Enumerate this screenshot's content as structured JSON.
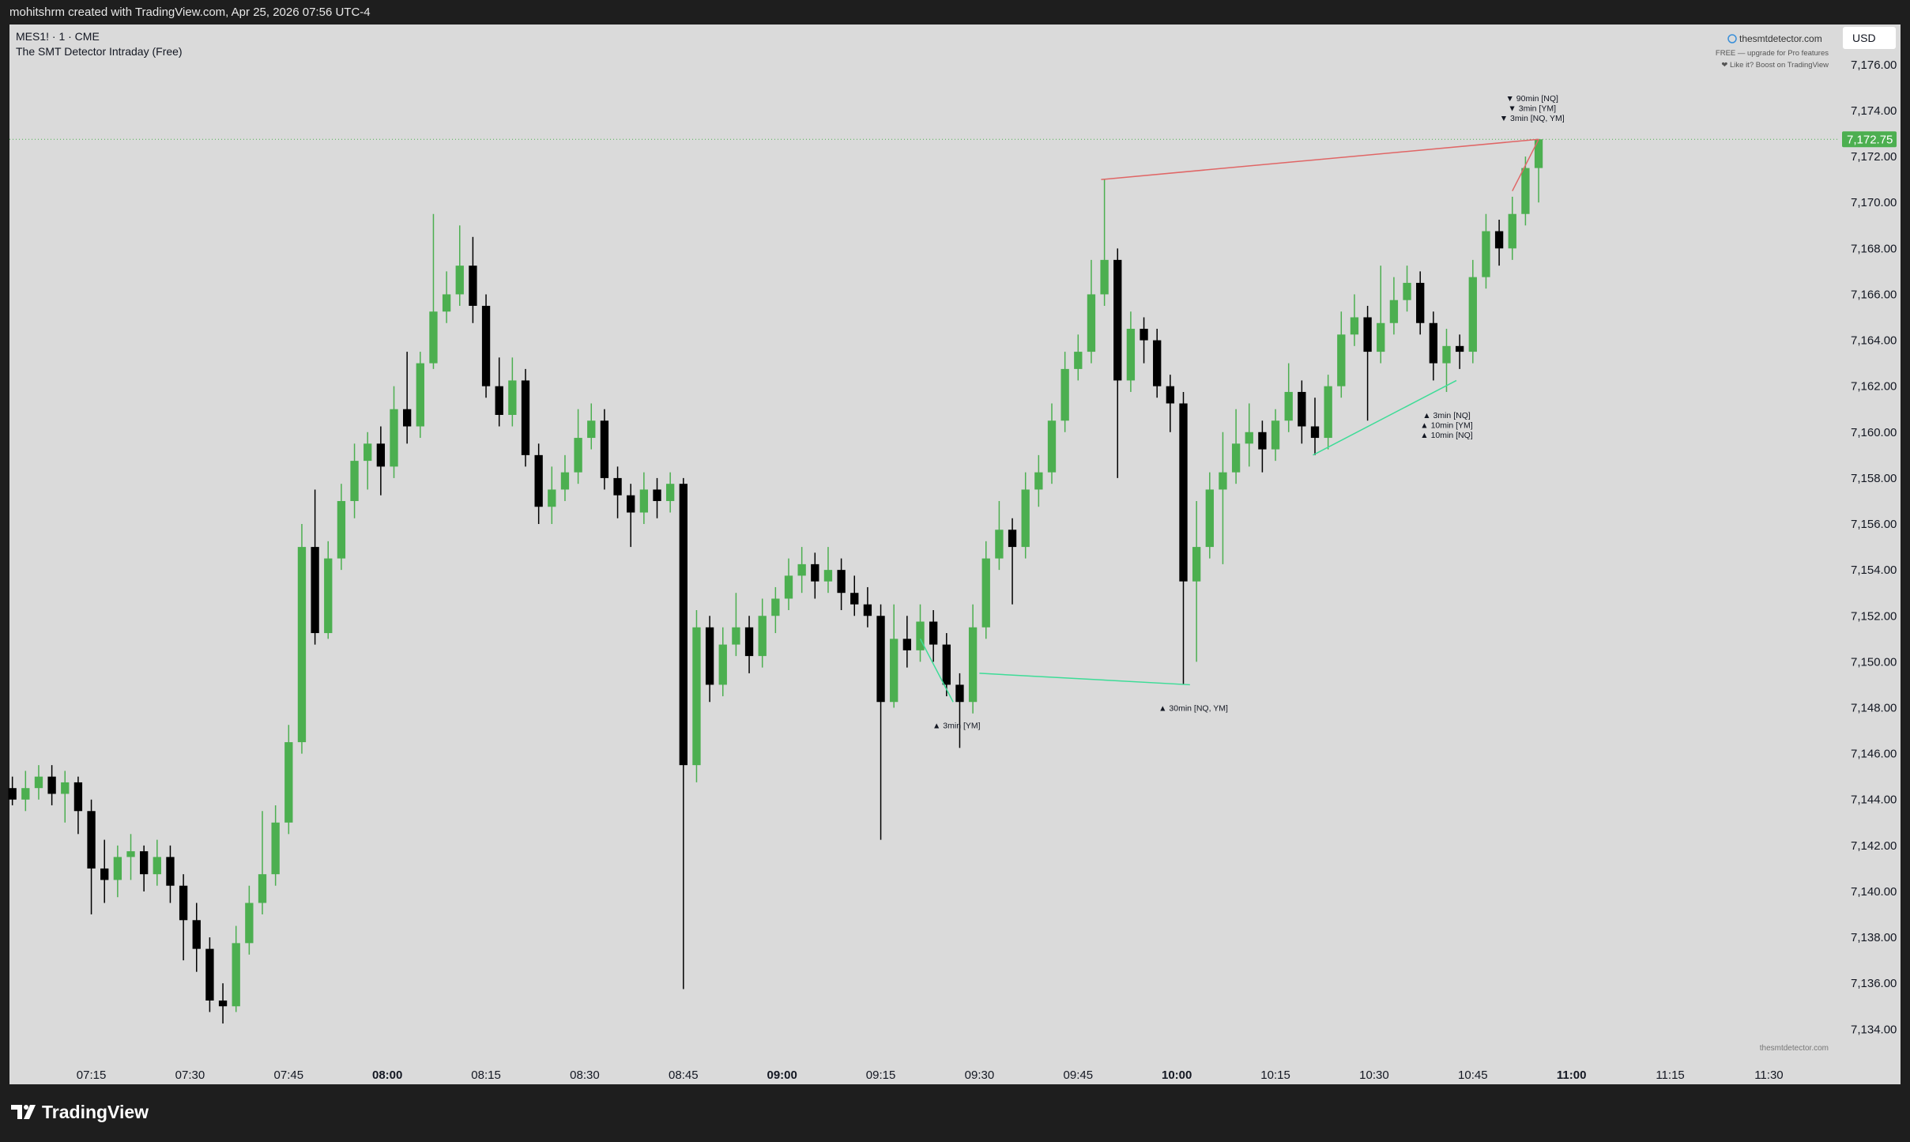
{
  "header": {
    "attribution": "mohitshrm created with TradingView.com, Apr 25, 2026 07:56 UTC-4",
    "brand": "TradingView"
  },
  "watermark": {
    "site": "thesmtdetector.com",
    "note": "FREE — upgrade for Pro features",
    "boost": "❤ Like it? Boost on TradingView",
    "footer_site": "thesmtdetector.com"
  },
  "chart_data": {
    "type": "candlestick",
    "title": "MES1! · 1 · CME",
    "subtitle": "The SMT Detector Intraday (Free)",
    "currency": "USD",
    "up_color": "#4caf50",
    "down_color": "#000000",
    "xlim": [
      422.56,
      700.76
    ],
    "ylim": [
      7132.6,
      7177.75
    ],
    "xticks": [
      {
        "value": 435,
        "label": "07:15"
      },
      {
        "value": 450,
        "label": "07:30"
      },
      {
        "value": 465,
        "label": "07:45"
      },
      {
        "value": 480,
        "label": "08:00",
        "bold": true
      },
      {
        "value": 495,
        "label": "08:15"
      },
      {
        "value": 510,
        "label": "08:30"
      },
      {
        "value": 525,
        "label": "08:45"
      },
      {
        "value": 540,
        "label": "09:00",
        "bold": true
      },
      {
        "value": 555,
        "label": "09:15"
      },
      {
        "value": 570,
        "label": "09:30"
      },
      {
        "value": 585,
        "label": "09:45"
      },
      {
        "value": 600,
        "label": "10:00",
        "bold": true
      },
      {
        "value": 615,
        "label": "10:15"
      },
      {
        "value": 630,
        "label": "10:30"
      },
      {
        "value": 645,
        "label": "10:45"
      },
      {
        "value": 660,
        "label": "11:00",
        "bold": true
      },
      {
        "value": 675,
        "label": "11:15"
      },
      {
        "value": 690,
        "label": "11:30"
      }
    ],
    "yticks": [
      {
        "value": 7134,
        "label": "7,134.00"
      },
      {
        "value": 7136,
        "label": "7,136.00"
      },
      {
        "value": 7138,
        "label": "7,138.00"
      },
      {
        "value": 7140,
        "label": "7,140.00"
      },
      {
        "value": 7142,
        "label": "7,142.00"
      },
      {
        "value": 7144,
        "label": "7,144.00"
      },
      {
        "value": 7146,
        "label": "7,146.00"
      },
      {
        "value": 7148,
        "label": "7,148.00"
      },
      {
        "value": 7150,
        "label": "7,150.00"
      },
      {
        "value": 7152,
        "label": "7,152.00"
      },
      {
        "value": 7154,
        "label": "7,154.00"
      },
      {
        "value": 7156,
        "label": "7,156.00"
      },
      {
        "value": 7158,
        "label": "7,158.00"
      },
      {
        "value": 7160,
        "label": "7,160.00"
      },
      {
        "value": 7162,
        "label": "7,162.00"
      },
      {
        "value": 7164,
        "label": "7,164.00"
      },
      {
        "value": 7166,
        "label": "7,166.00"
      },
      {
        "value": 7168,
        "label": "7,168.00"
      },
      {
        "value": 7170,
        "label": "7,170.00"
      },
      {
        "value": 7172,
        "label": "7,172.00"
      },
      {
        "value": 7174,
        "label": "7,174.00"
      },
      {
        "value": 7176,
        "label": "7,176.00"
      }
    ],
    "last_price": {
      "value": 7172.75,
      "label": "7,172.75"
    },
    "last_price_color": "#4caf50",
    "x": [
      423,
      425,
      427,
      429,
      431,
      433,
      435,
      437,
      439,
      441,
      443,
      445,
      447,
      449,
      451,
      453,
      455,
      457,
      459,
      461,
      463,
      465,
      467,
      469,
      471,
      473,
      475,
      477,
      479,
      481,
      483,
      485,
      487,
      489,
      491,
      493,
      495,
      497,
      499,
      501,
      503,
      505,
      507,
      509,
      511,
      513,
      515,
      517,
      519,
      521,
      523,
      525,
      527,
      529,
      531,
      533,
      535,
      537,
      539,
      541,
      543,
      545,
      547,
      549,
      551,
      553,
      555,
      557,
      559,
      561,
      563,
      565,
      567,
      569,
      571,
      573,
      575,
      577,
      579,
      581,
      583,
      585,
      587,
      589,
      591,
      593,
      595,
      597,
      599,
      601,
      603,
      605,
      607,
      609,
      611,
      613,
      615,
      617,
      619,
      621,
      623,
      625,
      627,
      629,
      631,
      633,
      635,
      637,
      639,
      641,
      643,
      645,
      647,
      649,
      651,
      653,
      655
    ],
    "ohlc": [
      [
        7144.5,
        7145,
        7143.75,
        7144
      ],
      [
        7144,
        7145.25,
        7143.5,
        7144.5
      ],
      [
        7144.5,
        7145.5,
        7144,
        7145
      ],
      [
        7145,
        7145.5,
        7143.75,
        7144.25
      ],
      [
        7144.25,
        7145.25,
        7143,
        7144.75
      ],
      [
        7144.75,
        7145,
        7142.5,
        7143.5
      ],
      [
        7143.5,
        7144,
        7139,
        7141
      ],
      [
        7141,
        7142.25,
        7139.5,
        7140.5
      ],
      [
        7140.5,
        7142,
        7139.75,
        7141.5
      ],
      [
        7141.5,
        7142.5,
        7140.5,
        7141.75
      ],
      [
        7141.75,
        7142,
        7140,
        7140.75
      ],
      [
        7140.75,
        7142.25,
        7140.25,
        7141.5
      ],
      [
        7141.5,
        7142,
        7139.5,
        7140.25
      ],
      [
        7140.25,
        7140.75,
        7137,
        7138.75
      ],
      [
        7138.75,
        7139.5,
        7136.5,
        7137.5
      ],
      [
        7137.5,
        7138,
        7134.75,
        7135.25
      ],
      [
        7135.25,
        7136,
        7134.25,
        7135
      ],
      [
        7135,
        7138.5,
        7134.75,
        7137.75
      ],
      [
        7137.75,
        7140.25,
        7137.25,
        7139.5
      ],
      [
        7139.5,
        7143.5,
        7139,
        7140.75
      ],
      [
        7140.75,
        7143.75,
        7140.25,
        7143
      ],
      [
        7143,
        7147.25,
        7142.5,
        7146.5
      ],
      [
        7146.5,
        7156,
        7146,
        7155
      ],
      [
        7155,
        7157.5,
        7150.75,
        7151.25
      ],
      [
        7151.25,
        7155.25,
        7151,
        7154.5
      ],
      [
        7154.5,
        7157.75,
        7154,
        7157
      ],
      [
        7157,
        7159.5,
        7156.25,
        7158.75
      ],
      [
        7158.75,
        7160,
        7157.5,
        7159.5
      ],
      [
        7159.5,
        7160.25,
        7157.25,
        7158.5
      ],
      [
        7158.5,
        7162,
        7158,
        7161
      ],
      [
        7161,
        7163.5,
        7159.5,
        7160.25
      ],
      [
        7160.25,
        7163.5,
        7159.75,
        7163
      ],
      [
        7163,
        7169.5,
        7162.75,
        7165.25
      ],
      [
        7165.25,
        7167,
        7164.75,
        7166
      ],
      [
        7166,
        7169,
        7165.5,
        7167.25
      ],
      [
        7167.25,
        7168.5,
        7164.75,
        7165.5
      ],
      [
        7165.5,
        7166,
        7161.5,
        7162
      ],
      [
        7162,
        7163.25,
        7160.25,
        7160.75
      ],
      [
        7160.75,
        7163.25,
        7160.25,
        7162.25
      ],
      [
        7162.25,
        7162.75,
        7158.5,
        7159
      ],
      [
        7159,
        7159.5,
        7156,
        7156.75
      ],
      [
        7156.75,
        7158.5,
        7156,
        7157.5
      ],
      [
        7157.5,
        7159,
        7157,
        7158.25
      ],
      [
        7158.25,
        7161,
        7157.75,
        7159.75
      ],
      [
        7159.75,
        7161.25,
        7159.25,
        7160.5
      ],
      [
        7160.5,
        7161,
        7157.5,
        7158
      ],
      [
        7158,
        7158.5,
        7156.25,
        7157.25
      ],
      [
        7157.25,
        7157.75,
        7155,
        7156.5
      ],
      [
        7156.5,
        7158.25,
        7156,
        7157.5
      ],
      [
        7157.5,
        7158,
        7156.25,
        7157
      ],
      [
        7157,
        7158.25,
        7156.5,
        7157.75
      ],
      [
        7157.75,
        7158,
        7135.75,
        7145.5
      ],
      [
        7145.5,
        7152.25,
        7144.75,
        7151.5
      ],
      [
        7151.5,
        7152,
        7148.25,
        7149
      ],
      [
        7149,
        7151.5,
        7148.5,
        7150.75
      ],
      [
        7150.75,
        7153,
        7150.25,
        7151.5
      ],
      [
        7151.5,
        7152,
        7149.5,
        7150.25
      ],
      [
        7150.25,
        7152.75,
        7149.75,
        7152
      ],
      [
        7152,
        7153.25,
        7151.25,
        7152.75
      ],
      [
        7152.75,
        7154.5,
        7152.25,
        7153.75
      ],
      [
        7153.75,
        7155,
        7153,
        7154.25
      ],
      [
        7154.25,
        7154.75,
        7152.75,
        7153.5
      ],
      [
        7153.5,
        7155,
        7153,
        7154
      ],
      [
        7154,
        7154.5,
        7152.25,
        7153
      ],
      [
        7153,
        7153.75,
        7152,
        7152.5
      ],
      [
        7152.5,
        7153.25,
        7151.5,
        7152
      ],
      [
        7152,
        7152.5,
        7142.25,
        7148.25
      ],
      [
        7148.25,
        7152.5,
        7148,
        7151
      ],
      [
        7151,
        7152,
        7149.75,
        7150.5
      ],
      [
        7150.5,
        7152.5,
        7150,
        7151.75
      ],
      [
        7151.75,
        7152.25,
        7150,
        7150.75
      ],
      [
        7150.75,
        7151.25,
        7148.5,
        7149
      ],
      [
        7149,
        7149.5,
        7146.25,
        7148.25
      ],
      [
        7148.25,
        7152.5,
        7147.75,
        7151.5
      ],
      [
        7151.5,
        7155.25,
        7151,
        7154.5
      ],
      [
        7154.5,
        7157,
        7154,
        7155.75
      ],
      [
        7155.75,
        7156.25,
        7152.5,
        7155
      ],
      [
        7155,
        7158.25,
        7154.5,
        7157.5
      ],
      [
        7157.5,
        7159,
        7156.75,
        7158.25
      ],
      [
        7158.25,
        7161.25,
        7157.75,
        7160.5
      ],
      [
        7160.5,
        7163.5,
        7160,
        7162.75
      ],
      [
        7162.75,
        7164.25,
        7162.25,
        7163.5
      ],
      [
        7163.5,
        7167.5,
        7163,
        7166
      ],
      [
        7166,
        7171,
        7165.5,
        7167.5
      ],
      [
        7167.5,
        7168,
        7158,
        7162.25
      ],
      [
        7162.25,
        7165.25,
        7161.75,
        7164.5
      ],
      [
        7164.5,
        7165,
        7163,
        7164
      ],
      [
        7164,
        7164.5,
        7161.5,
        7162
      ],
      [
        7162,
        7162.5,
        7160,
        7161.25
      ],
      [
        7161.25,
        7161.75,
        7149,
        7153.5
      ],
      [
        7153.5,
        7157,
        7150,
        7155
      ],
      [
        7155,
        7158.25,
        7154.5,
        7157.5
      ],
      [
        7157.5,
        7160,
        7154.25,
        7158.25
      ],
      [
        7158.25,
        7161,
        7157.75,
        7159.5
      ],
      [
        7159.5,
        7161.25,
        7158.5,
        7160
      ],
      [
        7160,
        7160.5,
        7158.25,
        7159.25
      ],
      [
        7159.25,
        7161,
        7158.75,
        7160.5
      ],
      [
        7160.5,
        7163,
        7160,
        7161.75
      ],
      [
        7161.75,
        7162.25,
        7159.5,
        7160.25
      ],
      [
        7160.25,
        7161.5,
        7159,
        7159.75
      ],
      [
        7159.75,
        7162.5,
        7159.25,
        7162
      ],
      [
        7162,
        7165.25,
        7161.5,
        7164.25
      ],
      [
        7164.25,
        7166,
        7163.75,
        7165
      ],
      [
        7165,
        7165.5,
        7160.5,
        7163.5
      ],
      [
        7163.5,
        7167.25,
        7163,
        7164.75
      ],
      [
        7164.75,
        7166.75,
        7164.25,
        7165.75
      ],
      [
        7165.75,
        7167.25,
        7165.25,
        7166.5
      ],
      [
        7166.5,
        7167,
        7164.25,
        7164.75
      ],
      [
        7164.75,
        7165.25,
        7162.25,
        7163
      ],
      [
        7163,
        7164.5,
        7161.75,
        7163.75
      ],
      [
        7163.75,
        7164.25,
        7162.75,
        7163.5
      ],
      [
        7163.5,
        7167.5,
        7163,
        7166.75
      ],
      [
        7166.75,
        7169.5,
        7166.25,
        7168.75
      ],
      [
        7168.75,
        7169.25,
        7167.25,
        7168
      ],
      [
        7168,
        7170.25,
        7167.5,
        7169.5
      ],
      [
        7169.5,
        7172,
        7169,
        7171.5
      ],
      [
        7171.5,
        7172.75,
        7170,
        7172.75
      ]
    ],
    "smt_lines": [
      {
        "x": [
          588.5,
          655
        ],
        "y": [
          7171,
          7172.75
        ],
        "color": "#e06666"
      },
      {
        "x": [
          651,
          655
        ],
        "y": [
          7170.5,
          7172.75
        ],
        "color": "#e06666"
      },
      {
        "x": [
          561,
          566
        ],
        "y": [
          7151,
          7148.25
        ],
        "color": "#3ddc97"
      },
      {
        "x": [
          570,
          602
        ],
        "y": [
          7149.5,
          7149
        ],
        "color": "#3ddc97"
      },
      {
        "x": [
          620.7,
          642.5
        ],
        "y": [
          7159,
          7162.25
        ],
        "color": "#3ddc97"
      }
    ],
    "annotations": [
      {
        "x": 654,
        "y": 7174.55,
        "lines": [
          "▼ 90min [NQ]",
          "▼ 3min [YM]",
          "▼ 3min [NQ, YM]"
        ]
      },
      {
        "x": 641,
        "y": 7160.75,
        "lines": [
          "▲ 3min [NQ]",
          "▲ 10min [YM]",
          "▲ 10min [NQ]"
        ]
      },
      {
        "x": 566.5,
        "y": 7147.25,
        "lines": [
          "▲ 3min [YM]"
        ]
      },
      {
        "x": 602.5,
        "y": 7148,
        "lines": [
          "▲ 30min [NQ, YM]"
        ]
      }
    ]
  }
}
